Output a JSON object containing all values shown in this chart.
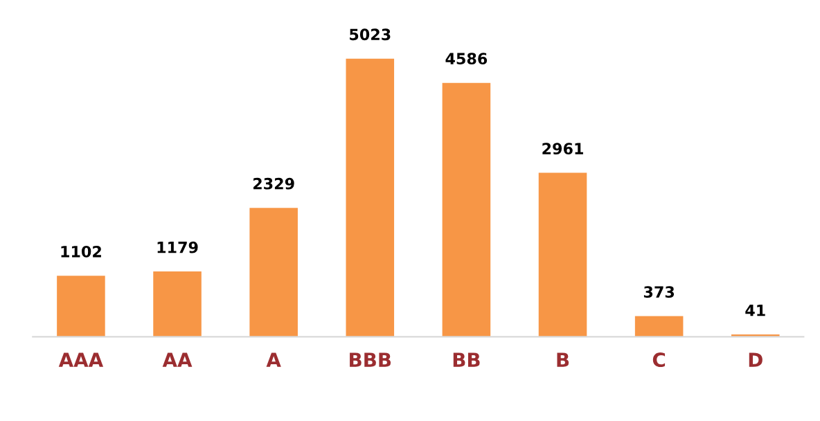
{
  "chart_data": {
    "type": "bar",
    "categories": [
      "AAA",
      "AA",
      "A",
      "BBB",
      "BB",
      "B",
      "C",
      "D"
    ],
    "values": [
      1102,
      1179,
      2329,
      5023,
      4586,
      2961,
      373,
      41
    ],
    "color": "#f79646",
    "data_labels": true,
    "grid": false,
    "legend": false,
    "tick_labels": "x"
  }
}
